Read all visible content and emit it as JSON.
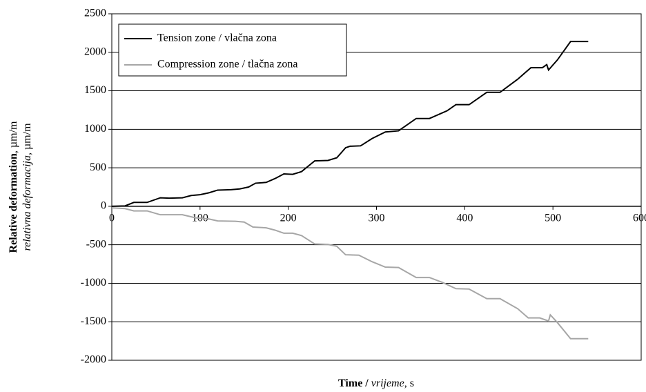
{
  "chart_data": {
    "type": "line",
    "xlabel": [
      "Time /",
      "vrijeme",
      ", s"
    ],
    "ylabel": [
      [
        "Relative deformation",
        ", µm/m"
      ],
      [
        "relativna deformacija",
        ", µm/m"
      ]
    ],
    "xlim": [
      0,
      600
    ],
    "xticks": [
      0,
      100,
      200,
      300,
      400,
      500,
      600
    ],
    "ylim": [
      -2000,
      2500
    ],
    "yticks": [
      -2000,
      -1500,
      -1000,
      -500,
      0,
      500,
      1000,
      1500,
      2000,
      2500
    ],
    "grid": true,
    "legend": "upper left",
    "series": [
      {
        "name": "Tension zone / vlačna zona",
        "color": "#000000",
        "x": [
          0,
          15,
          25,
          40,
          55,
          65,
          80,
          90,
          100,
          110,
          120,
          135,
          145,
          155,
          163,
          175,
          185,
          195,
          205,
          215,
          230,
          245,
          255,
          265,
          270,
          282,
          295,
          310,
          325,
          345,
          360,
          380,
          390,
          405,
          425,
          440,
          460,
          475,
          488,
          493,
          495,
          505,
          520,
          540
        ],
        "values": [
          0,
          5,
          50,
          50,
          110,
          105,
          110,
          140,
          150,
          175,
          210,
          215,
          225,
          250,
          300,
          310,
          360,
          420,
          415,
          450,
          590,
          595,
          630,
          760,
          780,
          785,
          880,
          965,
          980,
          1140,
          1140,
          1240,
          1320,
          1320,
          1480,
          1480,
          1650,
          1800,
          1800,
          1840,
          1770,
          1900,
          2140,
          2140
        ]
      },
      {
        "name": "Compression zone / tlačna zona",
        "color": "#a6a6a6",
        "x": [
          0,
          15,
          25,
          40,
          55,
          65,
          80,
          95,
          110,
          120,
          140,
          150,
          160,
          175,
          185,
          195,
          205,
          215,
          230,
          245,
          255,
          265,
          280,
          295,
          310,
          325,
          345,
          360,
          375,
          390,
          405,
          425,
          440,
          460,
          472,
          485,
          495,
          497,
          505,
          520,
          540
        ],
        "values": [
          -20,
          -30,
          -60,
          -60,
          -110,
          -110,
          -110,
          -150,
          -165,
          -190,
          -195,
          -205,
          -270,
          -280,
          -310,
          -350,
          -350,
          -380,
          -490,
          -495,
          -520,
          -630,
          -635,
          -720,
          -790,
          -795,
          -925,
          -925,
          -990,
          -1070,
          -1075,
          -1200,
          -1200,
          -1330,
          -1450,
          -1450,
          -1490,
          -1410,
          -1510,
          -1720,
          -1720
        ]
      }
    ]
  }
}
